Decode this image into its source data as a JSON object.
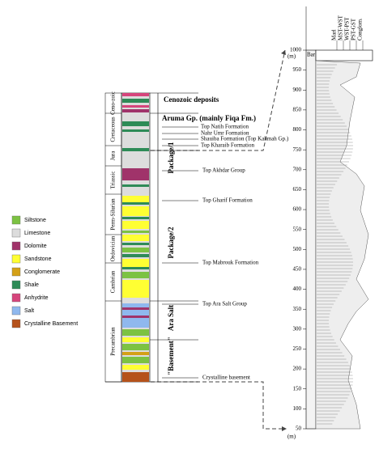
{
  "legend": [
    "Siltstone",
    "Limestone",
    "Dolomite",
    "Sandstone",
    "Conglomerate",
    "Shale",
    "Anhydrite",
    "Salt",
    "Crystalline Basement"
  ],
  "periods": [
    "Ceno-zoic",
    "Cretaceous",
    "Jura",
    "Triassic",
    "Perm-Silurian",
    "Ordovician",
    "Cambrian",
    "Precambrian"
  ],
  "groups": [
    "Cenozoic deposits",
    "Aruma Gp. (mainly Fiqa Fm.)",
    "Package/1",
    "Package/2",
    "Ara Salt",
    "\"Basement\""
  ],
  "formations": [
    "Top Natih Formation",
    "Nahr Umr Formation",
    "Shauiba Formation (Top Kahmah Gp.)",
    "Top Kharaib Formation",
    "Top Akhdar Group",
    "Top Gharif Formation",
    "Top Mabrouk Formation",
    "Top Ara Salt Group",
    "Crystalline basement"
  ],
  "log": {
    "header": [
      "Marl",
      "MST-WST",
      "WST-PST",
      "PST-GST",
      "Conglom."
    ],
    "bar": "Bar",
    "unit": "(m)",
    "depth_ticks": [
      50,
      100,
      150,
      200,
      250,
      300,
      350,
      400,
      450,
      500,
      550,
      600,
      650,
      700,
      750,
      800,
      850,
      900,
      950,
      1000
    ]
  }
}
